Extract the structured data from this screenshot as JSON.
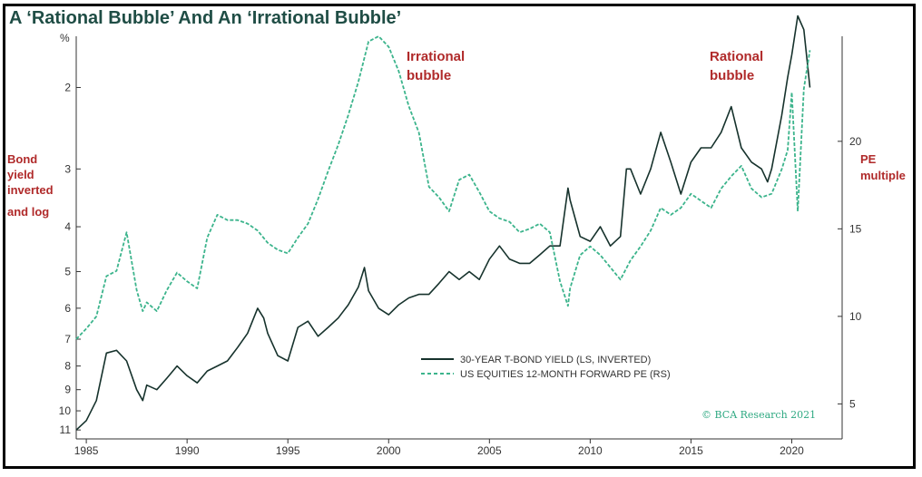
{
  "chart_data": {
    "type": "line",
    "title": "A ‘Rational Bubble’ And An ‘Irrational Bubble’",
    "credit": "© BCA Research 2021",
    "x_ticks": [
      "1985",
      "1990",
      "1995",
      "2000",
      "2005",
      "2010",
      "2015",
      "2020"
    ],
    "left_axis": {
      "unit": "%",
      "label_lines": [
        "Bond",
        "yield",
        "inverted",
        "and log"
      ],
      "scale": "log, inverted",
      "ticks": [
        "2",
        "3",
        "4",
        "5",
        "6",
        "7",
        "8",
        "9",
        "10",
        "11"
      ]
    },
    "right_axis": {
      "label_lines": [
        "PE",
        "multiple"
      ],
      "ticks": [
        "5",
        "10",
        "15",
        "20"
      ]
    },
    "annotations": [
      {
        "lines": [
          "Irrational",
          "bubble"
        ]
      },
      {
        "lines": [
          "Rational",
          "bubble"
        ]
      }
    ],
    "legend": [
      "30-YEAR T-BOND YIELD (LS, INVERTED)",
      "US EQUITIES 12-MONTH FORWARD PE (RS)"
    ],
    "series": [
      {
        "name": "30-YEAR T-BOND YIELD (LS, INVERTED)",
        "color": "#16322c",
        "style": "solid",
        "x": [
          1984.5,
          1985.0,
          1985.5,
          1986.0,
          1986.5,
          1987.0,
          1987.5,
          1987.8,
          1988.0,
          1988.5,
          1989.0,
          1989.5,
          1990.0,
          1990.5,
          1991.0,
          1991.5,
          1992.0,
          1992.5,
          1993.0,
          1993.5,
          1993.8,
          1994.0,
          1994.5,
          1995.0,
          1995.5,
          1996.0,
          1996.5,
          1997.0,
          1997.5,
          1998.0,
          1998.5,
          1998.8,
          1999.0,
          1999.5,
          2000.0,
          2000.5,
          2001.0,
          2001.5,
          2002.0,
          2002.5,
          2003.0,
          2003.5,
          2004.0,
          2004.5,
          2005.0,
          2005.5,
          2006.0,
          2006.5,
          2007.0,
          2007.5,
          2008.0,
          2008.5,
          2008.9,
          2009.0,
          2009.5,
          2010.0,
          2010.5,
          2011.0,
          2011.5,
          2011.8,
          2012.0,
          2012.5,
          2013.0,
          2013.5,
          2014.0,
          2014.5,
          2015.0,
          2015.5,
          2016.0,
          2016.5,
          2017.0,
          2017.5,
          2018.0,
          2018.5,
          2018.8,
          2019.0,
          2019.5,
          2019.8,
          2020.0,
          2020.3,
          2020.6,
          2020.9
        ],
        "y": [
          11.0,
          10.5,
          9.5,
          7.5,
          7.4,
          7.8,
          9.0,
          9.5,
          8.8,
          9.0,
          8.5,
          8.0,
          8.4,
          8.7,
          8.2,
          8.0,
          7.8,
          7.3,
          6.8,
          6.0,
          6.3,
          6.8,
          7.6,
          7.8,
          6.6,
          6.4,
          6.9,
          6.6,
          6.3,
          5.9,
          5.4,
          4.9,
          5.5,
          6.0,
          6.2,
          5.9,
          5.7,
          5.6,
          5.6,
          5.3,
          5.0,
          5.2,
          5.0,
          5.2,
          4.7,
          4.4,
          4.7,
          4.8,
          4.8,
          4.6,
          4.4,
          4.4,
          3.3,
          3.5,
          4.2,
          4.3,
          4.0,
          4.4,
          4.2,
          3.0,
          3.0,
          3.4,
          3.0,
          2.5,
          2.9,
          3.4,
          2.9,
          2.7,
          2.7,
          2.5,
          2.2,
          2.7,
          2.9,
          3.0,
          3.2,
          3.0,
          2.3,
          1.9,
          1.7,
          1.4,
          1.5,
          2.0
        ]
      },
      {
        "name": "US EQUITIES 12-MONTH FORWARD PE (RS)",
        "color": "#3cb48c",
        "style": "dashed",
        "x": [
          1984.5,
          1985.0,
          1985.5,
          1986.0,
          1986.5,
          1987.0,
          1987.5,
          1987.8,
          1988.0,
          1988.5,
          1989.0,
          1989.5,
          1990.0,
          1990.5,
          1991.0,
          1991.5,
          1992.0,
          1992.5,
          1993.0,
          1993.5,
          1994.0,
          1994.5,
          1995.0,
          1995.5,
          1996.0,
          1996.5,
          1997.0,
          1997.5,
          1998.0,
          1998.5,
          1999.0,
          1999.5,
          2000.0,
          2000.5,
          2001.0,
          2001.5,
          2002.0,
          2002.5,
          2003.0,
          2003.5,
          2004.0,
          2004.5,
          2005.0,
          2005.5,
          2006.0,
          2006.5,
          2007.0,
          2007.5,
          2008.0,
          2008.5,
          2008.9,
          2009.0,
          2009.5,
          2010.0,
          2010.5,
          2011.0,
          2011.5,
          2012.0,
          2012.5,
          2013.0,
          2013.5,
          2014.0,
          2014.5,
          2015.0,
          2015.5,
          2016.0,
          2016.5,
          2017.0,
          2017.5,
          2018.0,
          2018.5,
          2019.0,
          2019.5,
          2019.8,
          2020.0,
          2020.3,
          2020.6,
          2020.9
        ],
        "y": [
          8.7,
          9.3,
          10.0,
          12.3,
          12.6,
          14.8,
          11.5,
          10.3,
          10.8,
          10.3,
          11.5,
          12.5,
          12.0,
          11.6,
          14.5,
          15.8,
          15.5,
          15.5,
          15.3,
          14.9,
          14.2,
          13.8,
          13.6,
          14.5,
          15.3,
          16.7,
          18.3,
          19.8,
          21.5,
          23.4,
          25.7,
          26.0,
          25.4,
          24.0,
          22.0,
          20.5,
          17.4,
          16.8,
          16.0,
          17.8,
          18.1,
          17.1,
          16.0,
          15.6,
          15.4,
          14.8,
          15.0,
          15.3,
          14.8,
          12.0,
          10.6,
          11.6,
          13.5,
          14.0,
          13.5,
          12.8,
          12.1,
          13.2,
          14.0,
          14.9,
          16.2,
          15.8,
          16.2,
          17.0,
          16.6,
          16.2,
          17.3,
          18.0,
          18.6,
          17.3,
          16.8,
          17.0,
          18.4,
          19.5,
          22.8,
          16.0,
          23.0,
          25.2
        ]
      }
    ]
  }
}
